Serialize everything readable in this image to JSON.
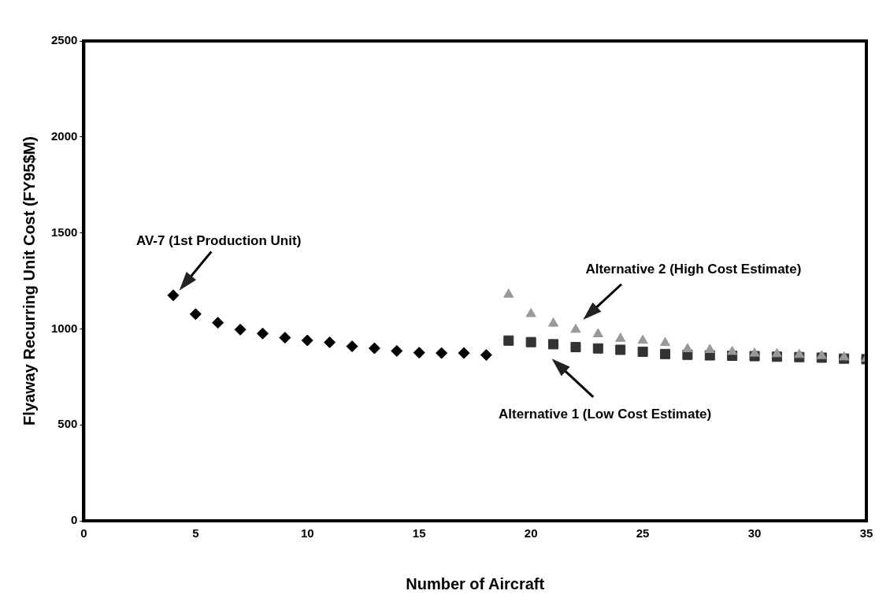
{
  "chart_data": {
    "type": "scatter",
    "xlabel": "Number of Aircraft",
    "ylabel": "Flyaway Recurring Unit Cost (FY95$M)",
    "xlim": [
      0,
      35
    ],
    "xticks": [
      0,
      5,
      10,
      15,
      20,
      25,
      30,
      35
    ],
    "ylim": [
      0,
      2500
    ],
    "yticks": [
      0,
      500,
      1000,
      1500,
      2000,
      2500
    ],
    "grid": false,
    "legend": false,
    "series": [
      {
        "color": "#000000",
        "marker": "diamond",
        "x": [
          4,
          5,
          6,
          7,
          8,
          9,
          10,
          11,
          12,
          13,
          14,
          15,
          16,
          17,
          18
        ],
        "values": [
          1175,
          1077,
          1032,
          996,
          976,
          954,
          940,
          930,
          909,
          899,
          885,
          876,
          874,
          874,
          864
        ]
      },
      {
        "color": "#333333",
        "marker": "square",
        "x": [
          19,
          20,
          21,
          22,
          23,
          24,
          25,
          26,
          27,
          28,
          29,
          30,
          31,
          32,
          33,
          34,
          35
        ],
        "values": [
          939,
          931,
          920,
          905,
          898,
          891,
          881,
          869,
          865,
          862,
          860,
          858,
          855,
          853,
          850,
          845,
          842
        ]
      },
      {
        "color": "#999999",
        "marker": "triangle",
        "x": [
          19,
          20,
          21,
          22,
          23,
          24,
          25,
          26,
          27,
          28,
          29,
          30,
          31,
          32,
          33,
          34,
          35
        ],
        "values": [
          1179,
          1078,
          1028,
          996,
          973,
          949,
          939,
          927,
          895,
          891,
          881,
          872,
          869,
          865,
          859,
          852,
          845
        ]
      }
    ],
    "annotations": [
      "AV-7 (1st Production Unit)",
      "Alternative 2 (High Cost Estimate)",
      "Alternative 1 (Low Cost Estimate)"
    ]
  }
}
